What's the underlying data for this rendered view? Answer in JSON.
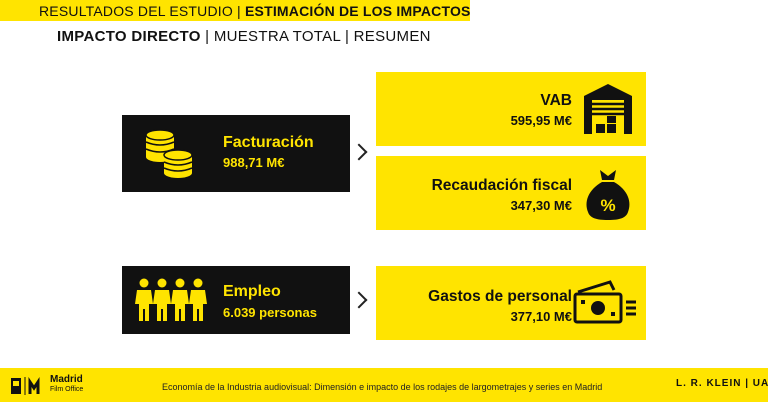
{
  "header": {
    "section": "RESULTADOS DEL ESTUDIO",
    "separator": " | ",
    "topic": "ESTIMACIÓN DE LOS IMPACTOS",
    "sub_bold": "IMPACTO DIRECTO",
    "sub_rest": " | MUESTRA TOTAL | RESUMEN"
  },
  "sources": [
    {
      "label": "Facturación",
      "value": "988,71 M€",
      "icon": "coins-icon"
    },
    {
      "label": "Empleo",
      "value": "6.039 personas",
      "icon": "people-icon"
    }
  ],
  "impacts": [
    {
      "label": "VAB",
      "value": "595,95 M€",
      "icon": "warehouse-icon"
    },
    {
      "label": "Recaudación fiscal",
      "value": "347,30 M€",
      "icon": "money-bag-icon"
    },
    {
      "label": "Gastos de personal",
      "value": "377,10 M€",
      "icon": "cash-icon"
    }
  ],
  "footer": {
    "caption": "Economía de la Industria audiovisual: Dimensión e impacto de los rodajes de largometrajes y series en Madrid",
    "madrid": "Madrid",
    "film_office": "Film Office",
    "klein": "L. R. KLEIN | UAM"
  },
  "colors": {
    "accent": "#ffe400",
    "dark": "#111111"
  }
}
